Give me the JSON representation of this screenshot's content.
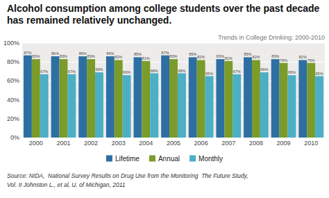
{
  "chart_data": {
    "type": "bar",
    "title": "Alcohol consumption among college students over the past decade has remained relatively unchanged.",
    "subtitle": "Trends in College Drinking: 2000-2010",
    "categories": [
      "2000",
      "2001",
      "2002",
      "2003",
      "2004",
      "2005",
      "2006",
      "2007",
      "2008",
      "2009",
      "2010"
    ],
    "series": [
      {
        "name": "Lifetime",
        "color": "#2E6FA3",
        "values": [
          87,
          86,
          86,
          86,
          85,
          87,
          85,
          83,
          85,
          83,
          82
        ],
        "value_labels": [
          "87%",
          "86%",
          "86%",
          "86%",
          "85%",
          "87%",
          "85%",
          "83%",
          "85%",
          "83%",
          "82%"
        ]
      },
      {
        "name": "Annual",
        "color": "#7B9B2A",
        "values": [
          83,
          83,
          83,
          82,
          81,
          83,
          82,
          81,
          82,
          79,
          79
        ],
        "value_labels": [
          "83%",
          "83%",
          "83%",
          "82%",
          "81%",
          "83%",
          "82%",
          "81%",
          "82%",
          "79%",
          "79%"
        ]
      },
      {
        "name": "Monthly",
        "color": "#4BAFC5",
        "values": [
          67,
          67,
          69,
          66,
          68,
          68,
          65,
          67,
          69,
          66,
          65
        ],
        "value_labels": [
          "67%",
          "67%",
          "69%",
          "66%",
          "68%",
          "68%",
          "65%",
          "67%",
          "69%",
          "66%",
          "65%"
        ]
      }
    ],
    "ylim": [
      0,
      100
    ],
    "yticks": [
      {
        "value": 0,
        "label": "0%"
      },
      {
        "value": 20,
        "label": "20%"
      },
      {
        "value": 40,
        "label": "40%"
      },
      {
        "value": 60,
        "label": "60%"
      },
      {
        "value": 80,
        "label": "80%"
      },
      {
        "value": 100,
        "label": "100%"
      }
    ],
    "grid": true,
    "data_labels": true,
    "legend": "bottom",
    "annotations": [
      "Source: NIDA,  National Survey Results on Drug Use from the Monitoring  The Future Study,",
      "Vol. II Johnston L., et al, U. of Michigan, 2011"
    ]
  }
}
